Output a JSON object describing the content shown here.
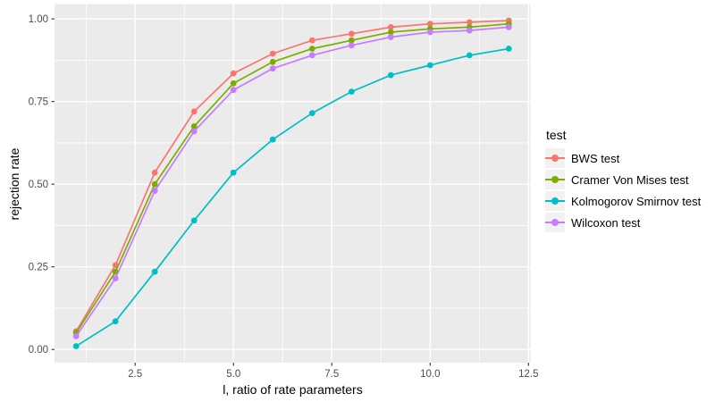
{
  "chart_data": {
    "type": "line",
    "title": "",
    "xlabel": "l, ratio of rate parameters",
    "ylabel": "rejection rate",
    "legend_title": "test",
    "legend_position": "right",
    "grid": true,
    "x": [
      1,
      2,
      3,
      4,
      5,
      6,
      7,
      8,
      9,
      10,
      11,
      12
    ],
    "series": [
      {
        "name": "BWS test",
        "color": "#F8766D",
        "values": [
          0.055,
          0.255,
          0.535,
          0.72,
          0.835,
          0.895,
          0.935,
          0.955,
          0.975,
          0.985,
          0.99,
          0.995
        ]
      },
      {
        "name": "Cramer Von Mises test",
        "color": "#7CAE00",
        "values": [
          0.05,
          0.235,
          0.5,
          0.675,
          0.805,
          0.87,
          0.91,
          0.935,
          0.96,
          0.97,
          0.975,
          0.985
        ]
      },
      {
        "name": "Kolmogorov Smirnov test",
        "color": "#00BFC4",
        "values": [
          0.01,
          0.085,
          0.235,
          0.39,
          0.535,
          0.635,
          0.715,
          0.78,
          0.83,
          0.86,
          0.89,
          0.91
        ]
      },
      {
        "name": "Wilcoxon test",
        "color": "#C77CFF",
        "values": [
          0.04,
          0.215,
          0.48,
          0.66,
          0.785,
          0.85,
          0.89,
          0.92,
          0.945,
          0.96,
          0.965,
          0.975
        ]
      }
    ],
    "x_ticks": {
      "major": [
        2.5,
        5.0,
        7.5,
        10.0,
        12.5
      ],
      "minor": [
        1.25,
        3.75,
        6.25,
        8.75,
        11.25
      ],
      "labels": [
        "2.5",
        "5.0",
        "7.5",
        "10.0",
        "12.5"
      ]
    },
    "y_ticks": {
      "major": [
        0.0,
        0.25,
        0.5,
        0.75,
        1.0
      ],
      "minor": [
        0.125,
        0.375,
        0.625,
        0.875
      ],
      "labels": [
        "0.00",
        "0.25",
        "0.50",
        "0.75",
        "1.00"
      ]
    },
    "x_domain": [
      0.45,
      12.55
    ],
    "y_domain": [
      -0.04,
      1.045
    ]
  },
  "style": {
    "page_bg": "#FFFFFF",
    "panel_bg": "#EBEBEB",
    "grid_color": "#FFFFFF",
    "tick_mark_color": "#333333",
    "tick_label_color": "#4D4D4D",
    "axis_title_color": "#000000",
    "legend_key_bg": "#F2F2F2"
  }
}
